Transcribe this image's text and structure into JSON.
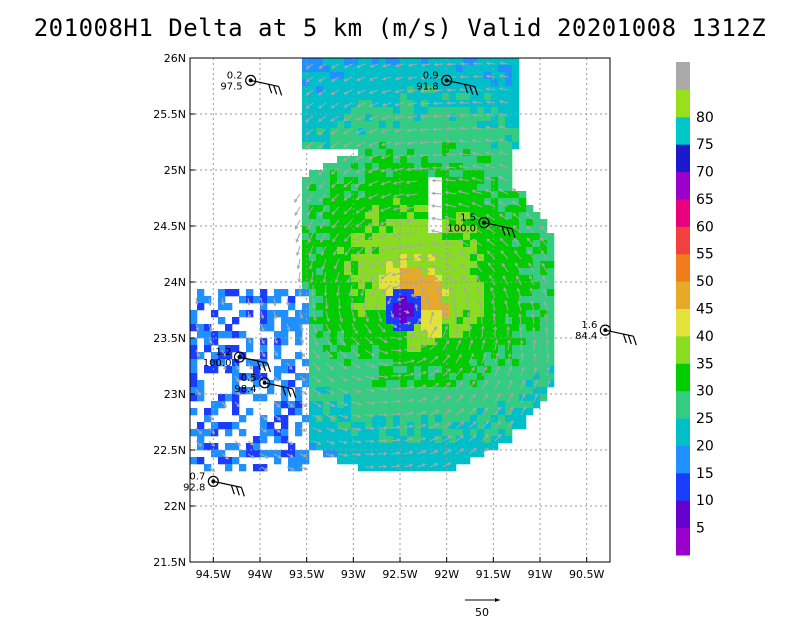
{
  "chart_data": {
    "type": "heatmap",
    "title": "201008H1 Delta at 5 km (m/s) Valid 20201008 1312Z",
    "xlim": [
      -94.75,
      -90.25
    ],
    "ylim": [
      21.5,
      26.0
    ],
    "x_ticks": [
      "94.5W",
      "94W",
      "93.5W",
      "93W",
      "92.5W",
      "92W",
      "91.5W",
      "91W",
      "90.5W"
    ],
    "x_tick_values": [
      -94.5,
      -94.0,
      -93.5,
      -93.0,
      -92.5,
      -92.0,
      -91.5,
      -91.0,
      -90.5
    ],
    "y_ticks": [
      "26N",
      "25.5N",
      "25N",
      "24.5N",
      "24N",
      "23.5N",
      "23N",
      "22.5N",
      "22N",
      "21.5N"
    ],
    "y_tick_values": [
      26.0,
      25.5,
      25.0,
      24.5,
      24.0,
      23.5,
      23.0,
      22.5,
      22.0,
      21.5
    ],
    "grid": true,
    "colorbar": {
      "labels": [
        "5",
        "10",
        "15",
        "20",
        "25",
        "30",
        "35",
        "40",
        "45",
        "50",
        "55",
        "60",
        "65",
        "70",
        "75",
        "80"
      ],
      "levels": [
        5,
        10,
        15,
        20,
        25,
        30,
        35,
        40,
        45,
        50,
        55,
        60,
        65,
        70,
        75,
        80
      ],
      "colors": [
        "#9a00cc",
        "#6600cc",
        "#1a3cff",
        "#1e90ff",
        "#00bfc8",
        "#33cc80",
        "#00cc00",
        "#88dd22",
        "#e2e23a",
        "#e8a828",
        "#f07c1c",
        "#f04040",
        "#e8007c",
        "#9900cc",
        "#1a1acc",
        "#00c8c8",
        "#99e01c",
        "#aaaaaa"
      ]
    },
    "storm_center": {
      "lon": -92.45,
      "lat": 23.75
    },
    "reference_vector_label": "50",
    "stations": [
      {
        "lon": -94.1,
        "lat": 25.8,
        "top": "0.2",
        "bottom": "97.5"
      },
      {
        "lon": -92.0,
        "lat": 25.8,
        "top": "0.9",
        "bottom": "91.8"
      },
      {
        "lon": -91.6,
        "lat": 24.53,
        "top": "1.5",
        "bottom": "100.0"
      },
      {
        "lon": -90.3,
        "lat": 23.57,
        "top": "1.6",
        "bottom": "84.4"
      },
      {
        "lon": -94.22,
        "lat": 23.33,
        "top": "1.2",
        "bottom": "100.0"
      },
      {
        "lon": -93.95,
        "lat": 23.1,
        "top": "0.5",
        "bottom": "98.4"
      },
      {
        "lon": -94.5,
        "lat": 22.22,
        "top": "0.7",
        "bottom": "92.8"
      }
    ]
  }
}
